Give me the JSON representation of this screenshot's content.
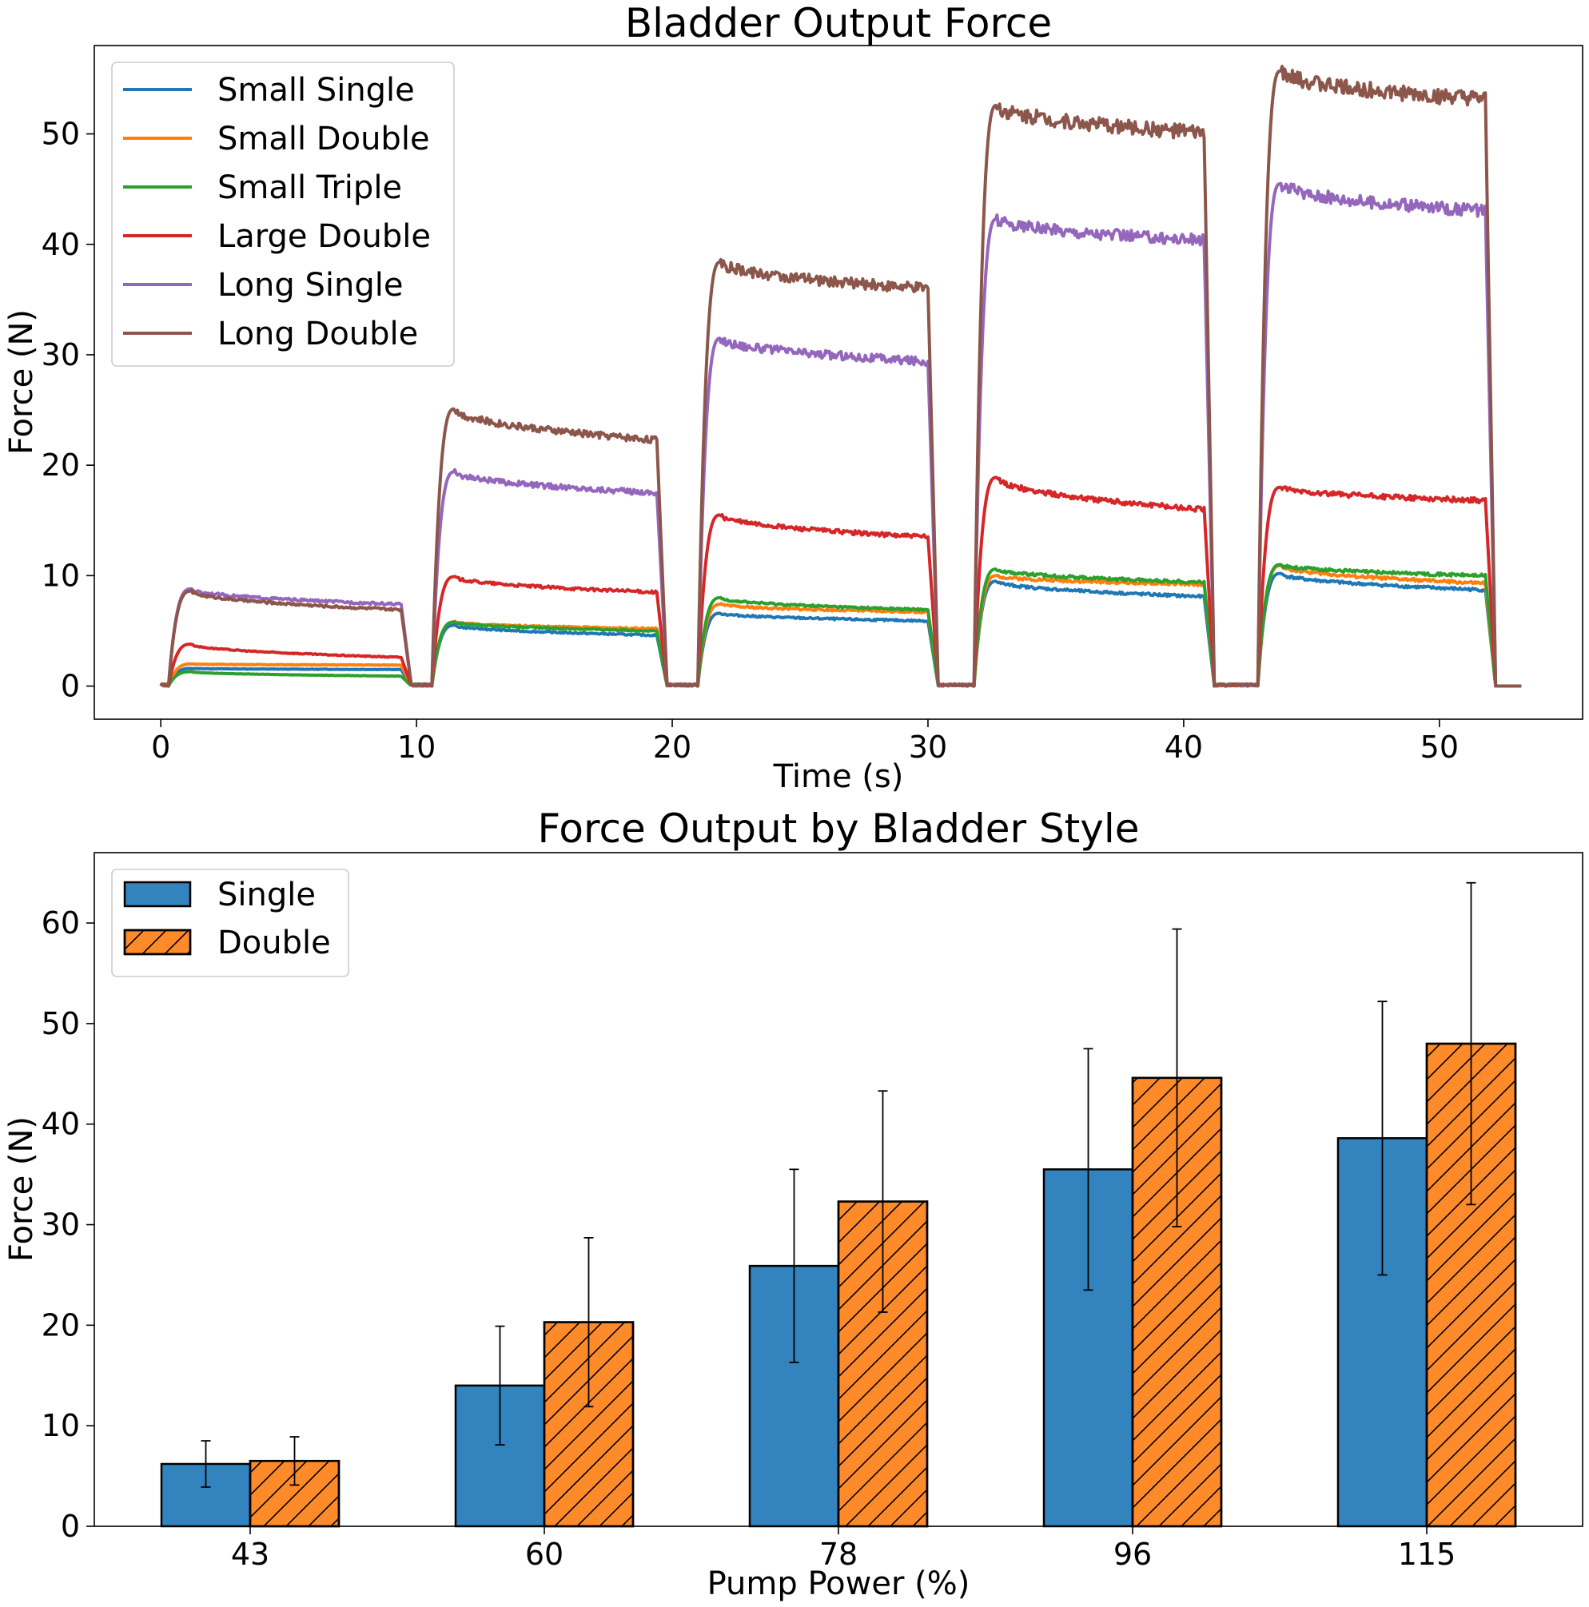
{
  "chart_data": [
    {
      "type": "line",
      "title": "Bladder Output Force",
      "xlabel": "Time (s)",
      "ylabel": "Force (N)",
      "xlim": [
        -2.6,
        55.6
      ],
      "ylim": [
        -3,
        58
      ],
      "xticks": [
        0,
        10,
        20,
        30,
        40,
        50
      ],
      "yticks": [
        0,
        10,
        20,
        30,
        40,
        50
      ],
      "grid": false,
      "legend": "top-left",
      "pulses": [
        {
          "on": 0.3,
          "off": 9.4
        },
        {
          "on": 10.6,
          "off": 19.4
        },
        {
          "on": 21.0,
          "off": 30.0
        },
        {
          "on": 31.8,
          "off": 40.8
        },
        {
          "on": 42.9,
          "off": 51.8
        }
      ],
      "series": [
        {
          "name": "Small Single",
          "color": "#1f77b4",
          "plateaus": [
            [
              1.6,
              1.5
            ],
            [
              5.5,
              4.6
            ],
            [
              6.6,
              5.9
            ],
            [
              9.5,
              8.1
            ],
            [
              10.2,
              8.7
            ]
          ]
        },
        {
          "name": "Small Double",
          "color": "#ff7f0e",
          "plateaus": [
            [
              2.0,
              1.9
            ],
            [
              5.8,
              5.2
            ],
            [
              7.4,
              6.7
            ],
            [
              10.0,
              9.2
            ],
            [
              10.9,
              9.3
            ]
          ]
        },
        {
          "name": "Small Triple",
          "color": "#2ca02c",
          "plateaus": [
            [
              1.3,
              0.9
            ],
            [
              5.8,
              5.0
            ],
            [
              8.0,
              6.9
            ],
            [
              10.6,
              9.4
            ],
            [
              11.0,
              10.0
            ]
          ]
        },
        {
          "name": "Large Double",
          "color": "#d62728",
          "plateaus": [
            [
              3.8,
              2.6
            ],
            [
              9.9,
              8.5
            ],
            [
              15.5,
              13.5
            ],
            [
              18.9,
              16.0
            ],
            [
              18.0,
              16.8
            ]
          ]
        },
        {
          "name": "Long Single",
          "color": "#9467bd",
          "plateaus": [
            [
              8.8,
              7.4
            ],
            [
              19.4,
              17.5
            ],
            [
              31.5,
              29.4
            ],
            [
              42.3,
              40.4
            ],
            [
              45.5,
              43.0
            ]
          ]
        },
        {
          "name": "Long Double",
          "color": "#8c564b",
          "plateaus": [
            [
              8.6,
              6.9
            ],
            [
              25.1,
              22.3
            ],
            [
              38.4,
              36.0
            ],
            [
              52.6,
              50.1
            ],
            [
              55.7,
              53.1
            ]
          ]
        }
      ]
    },
    {
      "type": "bar",
      "title": "Force Output by Bladder Style",
      "xlabel": "Pump Power (%)",
      "ylabel": "Force (N)",
      "ylim": [
        0,
        67
      ],
      "yticks": [
        0,
        10,
        20,
        30,
        40,
        50,
        60
      ],
      "grid": false,
      "legend": "top-left",
      "categories": [
        "43",
        "60",
        "78",
        "96",
        "115"
      ],
      "series": [
        {
          "name": "Single",
          "color": "#3283be",
          "hatch": false,
          "values": [
            6.2,
            14.0,
            25.9,
            35.5,
            38.6
          ],
          "errors": [
            2.3,
            5.9,
            9.6,
            12.0,
            13.6
          ]
        },
        {
          "name": "Double",
          "color": "#fe8a2a",
          "hatch": true,
          "values": [
            6.5,
            20.3,
            32.3,
            44.6,
            48.0
          ],
          "errors": [
            2.4,
            8.4,
            11.0,
            14.8,
            16.0
          ]
        }
      ]
    }
  ]
}
